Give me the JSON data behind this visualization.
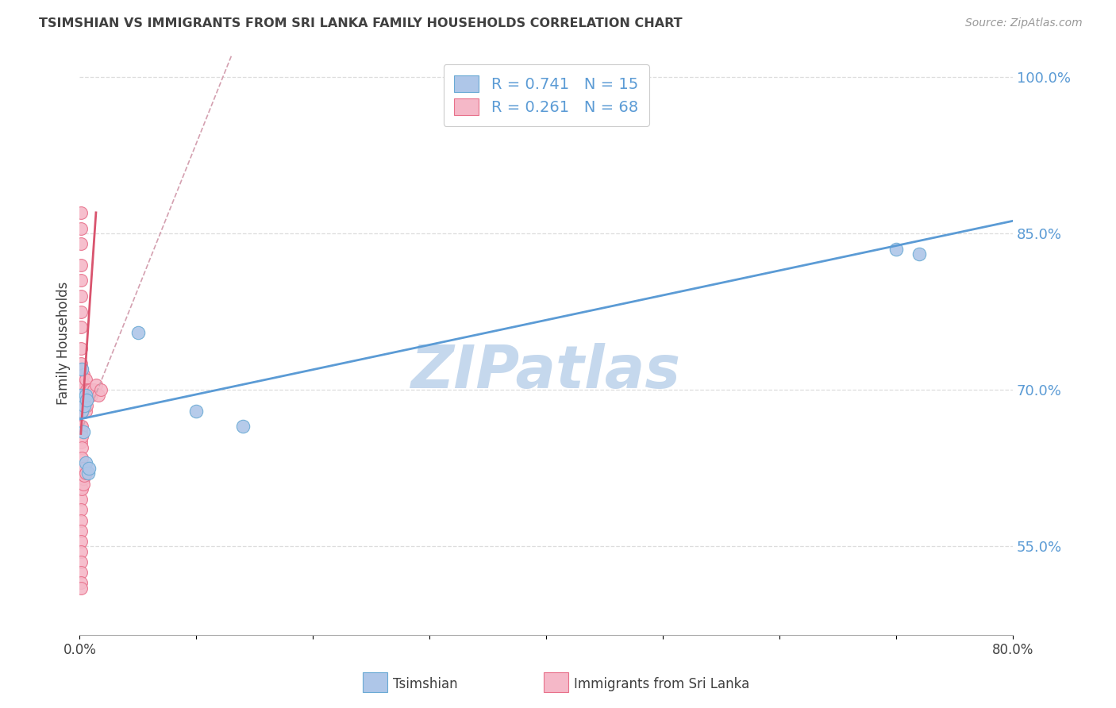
{
  "title": "TSIMSHIAN VS IMMIGRANTS FROM SRI LANKA FAMILY HOUSEHOLDS CORRELATION CHART",
  "source": "Source: ZipAtlas.com",
  "xlabel_tsimshian": "Tsimshian",
  "xlabel_srilanka": "Immigrants from Sri Lanka",
  "ylabel": "Family Households",
  "xmin": 0.0,
  "xmax": 0.8,
  "ymin": 0.465,
  "ymax": 1.025,
  "yticks": [
    0.55,
    0.7,
    0.85,
    1.0
  ],
  "ytick_labels": [
    "55.0%",
    "70.0%",
    "85.0%",
    "100.0%"
  ],
  "xticks": [
    0.0,
    0.1,
    0.2,
    0.3,
    0.4,
    0.5,
    0.6,
    0.7,
    0.8
  ],
  "xtick_labels": [
    "0.0%",
    "",
    "",
    "",
    "",
    "",
    "",
    "",
    "80.0%"
  ],
  "blue_R": "0.741",
  "blue_N": "15",
  "pink_R": "0.261",
  "pink_N": "68",
  "blue_color": "#aec6e8",
  "pink_color": "#f5b8c8",
  "blue_edge_color": "#6aaad4",
  "pink_edge_color": "#e8708a",
  "blue_line_color": "#5b9bd5",
  "pink_line_color": "#d9546e",
  "pink_dashed_color": "#d4a0b0",
  "axis_label_color": "#5b9bd5",
  "title_color": "#404040",
  "source_color": "#999999",
  "legend_text_color": "#5b9bd5",
  "tsimshian_x": [
    0.001,
    0.002,
    0.002,
    0.003,
    0.004,
    0.005,
    0.005,
    0.006,
    0.007,
    0.008,
    0.05,
    0.1,
    0.14,
    0.7,
    0.72
  ],
  "tsimshian_y": [
    0.695,
    0.72,
    0.68,
    0.66,
    0.685,
    0.695,
    0.63,
    0.69,
    0.62,
    0.625,
    0.755,
    0.68,
    0.665,
    0.835,
    0.83
  ],
  "srilanka_x": [
    0.001,
    0.001,
    0.001,
    0.001,
    0.001,
    0.001,
    0.001,
    0.001,
    0.001,
    0.001,
    0.001,
    0.001,
    0.001,
    0.001,
    0.001,
    0.001,
    0.001,
    0.001,
    0.001,
    0.001,
    0.002,
    0.002,
    0.002,
    0.002,
    0.002,
    0.003,
    0.003,
    0.003,
    0.004,
    0.004,
    0.005,
    0.005,
    0.005,
    0.006,
    0.006,
    0.007,
    0.008,
    0.009,
    0.01,
    0.012,
    0.014,
    0.016,
    0.018,
    0.001,
    0.001,
    0.001,
    0.001,
    0.001,
    0.001,
    0.001,
    0.001,
    0.001,
    0.001,
    0.001,
    0.001,
    0.001,
    0.001,
    0.002,
    0.002,
    0.002,
    0.002,
    0.002,
    0.002,
    0.003,
    0.003,
    0.003,
    0.004,
    0.005
  ],
  "srilanka_y": [
    0.7,
    0.72,
    0.71,
    0.695,
    0.68,
    0.665,
    0.65,
    0.66,
    0.69,
    0.715,
    0.725,
    0.74,
    0.76,
    0.775,
    0.79,
    0.805,
    0.82,
    0.84,
    0.855,
    0.87,
    0.7,
    0.68,
    0.665,
    0.695,
    0.72,
    0.685,
    0.7,
    0.715,
    0.69,
    0.705,
    0.68,
    0.695,
    0.71,
    0.685,
    0.7,
    0.695,
    0.7,
    0.7,
    0.695,
    0.7,
    0.705,
    0.695,
    0.7,
    0.635,
    0.625,
    0.615,
    0.605,
    0.595,
    0.585,
    0.575,
    0.565,
    0.555,
    0.545,
    0.535,
    0.525,
    0.515,
    0.51,
    0.655,
    0.645,
    0.635,
    0.625,
    0.615,
    0.605,
    0.625,
    0.615,
    0.61,
    0.618,
    0.62
  ],
  "blue_trend_x": [
    0.0,
    0.8
  ],
  "blue_trend_y": [
    0.672,
    0.862
  ],
  "pink_solid_trend_x": [
    0.001,
    0.014
  ],
  "pink_solid_trend_y": [
    0.658,
    0.87
  ],
  "pink_dashed_trend_x": [
    0.001,
    0.13
  ],
  "pink_dashed_trend_y": [
    0.66,
    1.02
  ],
  "background_color": "#ffffff",
  "grid_color": "#dddddd",
  "watermark_text": "ZIPatlas",
  "watermark_color": "#c5d8ed",
  "watermark_fontsize": 54
}
